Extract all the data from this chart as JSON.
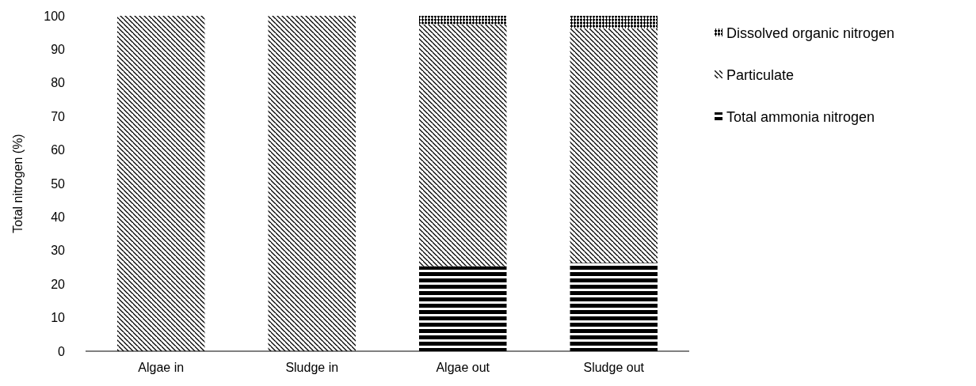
{
  "chart_data": {
    "type": "bar",
    "stacked": true,
    "ylabel": "Total nitrogen (%)",
    "categories": [
      "Algae in",
      "Sludge in",
      "Algae out",
      "Sludge out"
    ],
    "series": [
      {
        "name": "Total ammonia nitrogen",
        "color": "#000000",
        "values": [
          0,
          0,
          25.3,
          26.3
        ]
      },
      {
        "name": "Particulate",
        "color": "#000000",
        "values": [
          100,
          100,
          72.2,
          70
        ]
      },
      {
        "name": "Dissolved organic nitrogen",
        "color": "#000000",
        "values": [
          0,
          0,
          2.5,
          3.7
        ]
      }
    ],
    "ylim": [
      0,
      100
    ],
    "yticks": [
      0,
      10,
      20,
      30,
      40,
      50,
      60,
      70,
      80,
      90,
      100
    ],
    "legend": "right"
  }
}
